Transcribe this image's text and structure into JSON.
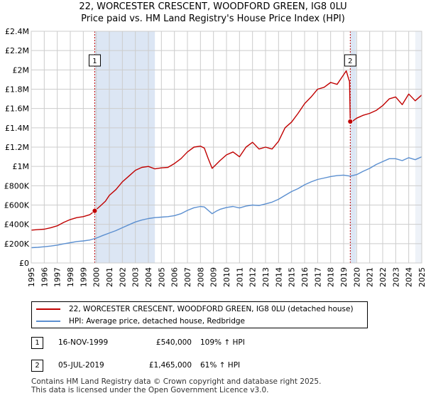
{
  "title_line1": "22, WORCESTER CRESCENT, WOODFORD GREEN, IG8 0LU",
  "title_line2": "Price paid vs. HM Land Registry's House Price Index (HPI)",
  "colors": {
    "property": "#c00000",
    "hpi": "#5b8fd0",
    "shade": "#dce6f4",
    "grid": "#cccccc"
  },
  "chart_data": {
    "type": "line",
    "xlim": [
      1995,
      2025
    ],
    "ylim": [
      0,
      2400000
    ],
    "x_ticks": [
      1995,
      1996,
      1997,
      1998,
      1999,
      2000,
      2001,
      2002,
      2003,
      2004,
      2005,
      2006,
      2007,
      2008,
      2009,
      2010,
      2011,
      2012,
      2013,
      2014,
      2015,
      2016,
      2017,
      2018,
      2019,
      2020,
      2021,
      2022,
      2023,
      2024,
      2025
    ],
    "y_ticks": [
      0,
      200000,
      400000,
      600000,
      800000,
      1000000,
      1200000,
      1400000,
      1600000,
      1800000,
      2000000,
      2200000,
      2400000
    ],
    "y_tick_labels": [
      "£0",
      "£200K",
      "£400K",
      "£600K",
      "£800K",
      "£1M",
      "£1.2M",
      "£1.4M",
      "£1.6M",
      "£1.8M",
      "£2M",
      "£2.2M",
      "£2.4M"
    ],
    "series": [
      {
        "name": "22, WORCESTER CRESCENT, WOODFORD GREEN, IG8 0LU (detached house)",
        "x": [
          1995.0,
          1995.5,
          1996.0,
          1996.5,
          1997.0,
          1997.5,
          1998.0,
          1998.5,
          1999.0,
          1999.5,
          1999.88,
          2000.3,
          2000.7,
          2001.0,
          2001.5,
          2002.0,
          2002.5,
          2003.0,
          2003.5,
          2004.0,
          2004.5,
          2005.0,
          2005.5,
          2006.0,
          2006.5,
          2007.0,
          2007.5,
          2008.0,
          2008.3,
          2008.6,
          2008.9,
          2009.2,
          2009.5,
          2010.0,
          2010.5,
          2011.0,
          2011.5,
          2012.0,
          2012.5,
          2013.0,
          2013.5,
          2014.0,
          2014.5,
          2015.0,
          2015.5,
          2016.0,
          2016.5,
          2017.0,
          2017.5,
          2018.0,
          2018.5,
          2019.0,
          2019.2,
          2019.4,
          2019.45,
          2019.51,
          2019.7,
          2020.0,
          2020.5,
          2021.0,
          2021.5,
          2022.0,
          2022.5,
          2023.0,
          2023.5,
          2024.0,
          2024.5,
          2025.0
        ],
        "y": [
          340000,
          345000,
          350000,
          365000,
          385000,
          420000,
          450000,
          470000,
          480000,
          500000,
          540000,
          590000,
          640000,
          700000,
          760000,
          840000,
          900000,
          960000,
          990000,
          1000000,
          975000,
          985000,
          990000,
          1030000,
          1080000,
          1150000,
          1200000,
          1210000,
          1190000,
          1080000,
          980000,
          1020000,
          1060000,
          1120000,
          1150000,
          1100000,
          1200000,
          1250000,
          1180000,
          1200000,
          1180000,
          1260000,
          1400000,
          1460000,
          1550000,
          1650000,
          1720000,
          1800000,
          1820000,
          1870000,
          1850000,
          1950000,
          1990000,
          1900000,
          1880000,
          1465000,
          1470000,
          1500000,
          1530000,
          1550000,
          1580000,
          1630000,
          1700000,
          1720000,
          1640000,
          1750000,
          1680000,
          1740000
        ]
      },
      {
        "name": "HPI: Average price, detached house, Redbridge",
        "x": [
          1995.0,
          1995.5,
          1996.0,
          1996.5,
          1997.0,
          1997.5,
          1998.0,
          1998.5,
          1999.0,
          1999.5,
          2000.0,
          2000.5,
          2001.0,
          2001.5,
          2002.0,
          2002.5,
          2003.0,
          2003.5,
          2004.0,
          2004.5,
          2005.0,
          2005.5,
          2006.0,
          2006.5,
          2007.0,
          2007.5,
          2008.0,
          2008.3,
          2008.6,
          2008.9,
          2009.2,
          2009.5,
          2010.0,
          2010.5,
          2011.0,
          2011.5,
          2012.0,
          2012.5,
          2013.0,
          2013.5,
          2014.0,
          2014.5,
          2015.0,
          2015.5,
          2016.0,
          2016.5,
          2017.0,
          2017.5,
          2018.0,
          2018.5,
          2019.0,
          2019.5,
          2020.0,
          2020.5,
          2021.0,
          2021.5,
          2022.0,
          2022.5,
          2023.0,
          2023.5,
          2024.0,
          2024.5,
          2025.0
        ],
        "y": [
          158000,
          162000,
          168000,
          175000,
          185000,
          198000,
          210000,
          222000,
          228000,
          238000,
          258000,
          285000,
          310000,
          335000,
          365000,
          395000,
          425000,
          445000,
          460000,
          470000,
          475000,
          480000,
          490000,
          510000,
          545000,
          572000,
          585000,
          580000,
          545000,
          510000,
          535000,
          555000,
          575000,
          585000,
          570000,
          590000,
          600000,
          595000,
          612000,
          630000,
          660000,
          700000,
          740000,
          770000,
          810000,
          840000,
          865000,
          880000,
          895000,
          905000,
          910000,
          900000,
          915000,
          950000,
          980000,
          1020000,
          1050000,
          1080000,
          1080000,
          1060000,
          1090000,
          1070000,
          1100000
        ]
      }
    ],
    "sales": [
      {
        "label": "1",
        "x": 1999.88,
        "y": 540000
      },
      {
        "label": "2",
        "x": 2019.51,
        "y": 1465000
      }
    ]
  },
  "legend": {
    "property": "22, WORCESTER CRESCENT, WOODFORD GREEN, IG8 0LU (detached house)",
    "hpi": "HPI: Average price, detached house, Redbridge"
  },
  "sales_table": [
    {
      "num": "1",
      "date": "16-NOV-1999",
      "price": "£540,000",
      "hpi": "109% ↑ HPI"
    },
    {
      "num": "2",
      "date": "05-JUL-2019",
      "price": "£1,465,000",
      "hpi": "61% ↑ HPI"
    }
  ],
  "footer_line1": "Contains HM Land Registry data © Crown copyright and database right 2025.",
  "footer_line2": "This data is licensed under the Open Government Licence v3.0."
}
